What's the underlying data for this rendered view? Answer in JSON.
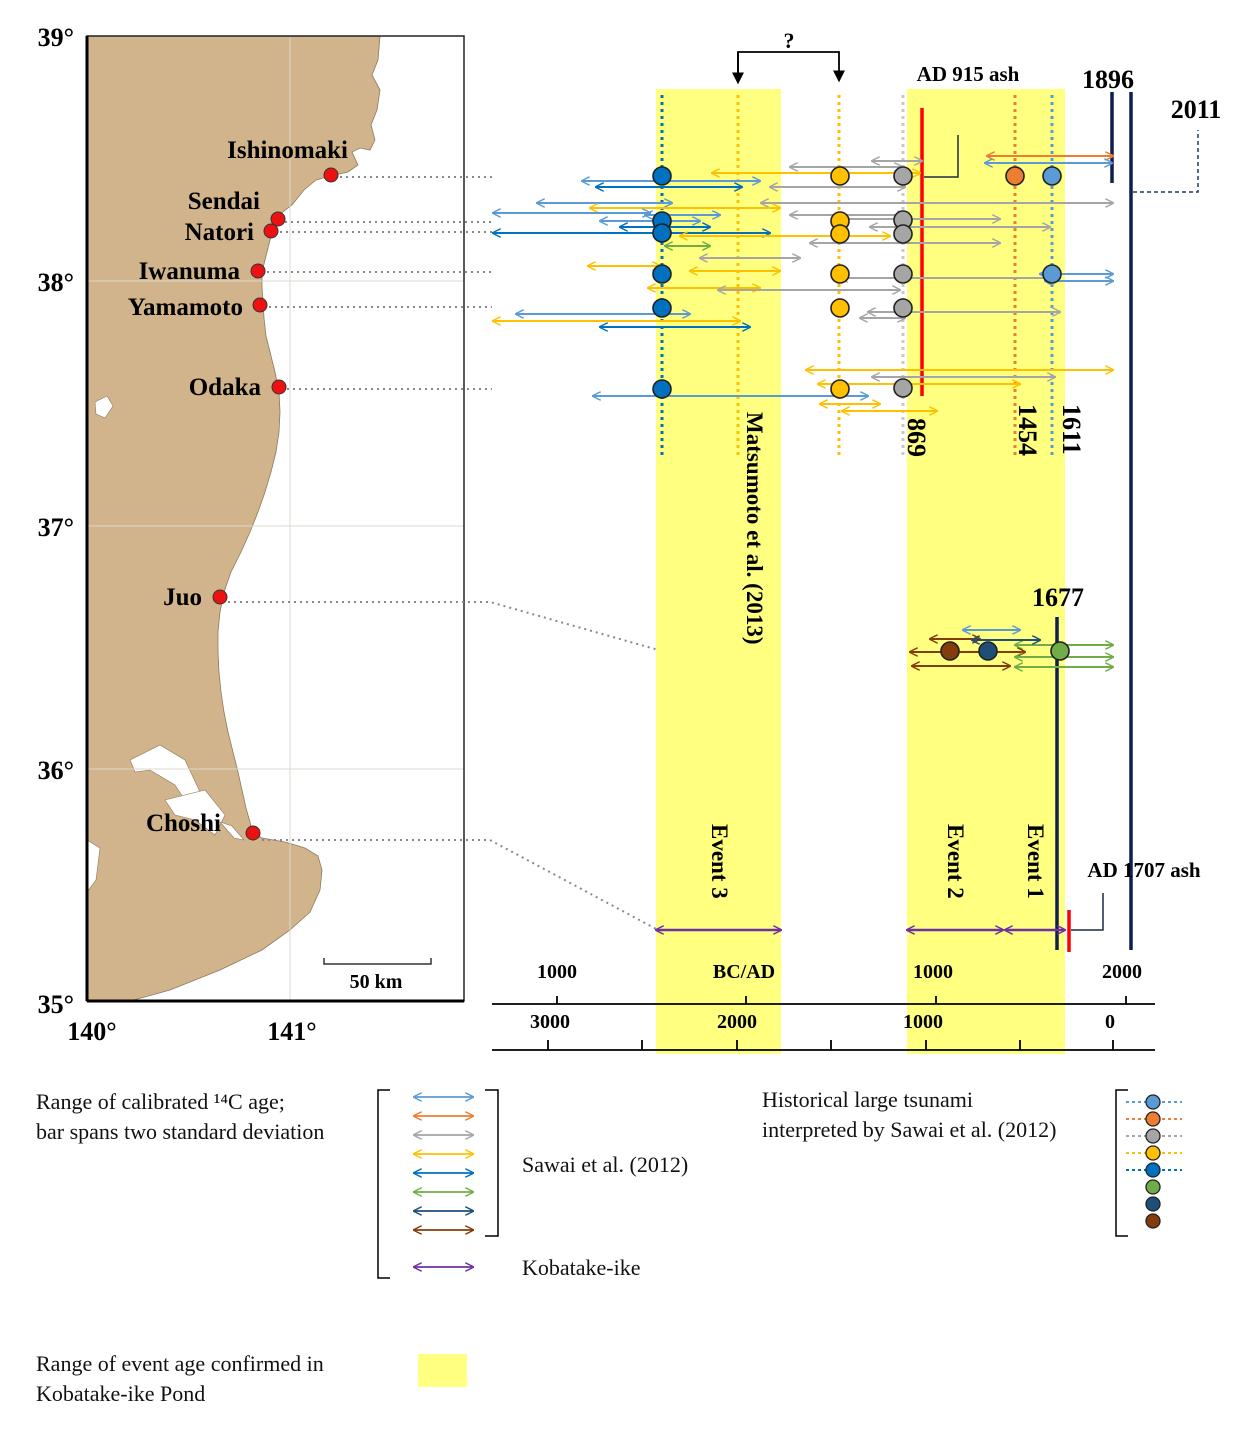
{
  "map": {
    "lat_labels": [
      "39°",
      "38°",
      "37°",
      "36°",
      "35°"
    ],
    "lon_labels": [
      "140°",
      "141°"
    ],
    "scale_label": "50 km",
    "sites": [
      {
        "name": "Ishinomaki"
      },
      {
        "name": "Sendai"
      },
      {
        "name": "Natori"
      },
      {
        "name": "Iwanuma"
      },
      {
        "name": "Yamamoto"
      },
      {
        "name": "Odaka"
      },
      {
        "name": "Juo"
      },
      {
        "name": "Choshi"
      }
    ],
    "colors": {
      "land": "#d2b48c",
      "site": "#ee1111"
    }
  },
  "timeline": {
    "axis_top_ticks": [
      "1000",
      "BC/AD",
      "1000",
      "2000"
    ],
    "axis_bottom_ticks": [
      "3000",
      "2000",
      "1000",
      "0"
    ],
    "question_mark": "?",
    "year_labels": {
      "y1896": "1896",
      "y2011": "2011",
      "y1677": "1677",
      "y869": "869",
      "y1454": "1454",
      "y1611": "1611"
    },
    "ash_labels": {
      "ad915": "AD 915 ash",
      "ad1707": "AD 1707 ash"
    },
    "matsumoto": "Matsumoto et al. (2013)",
    "events": [
      "Event 3",
      "Event 2",
      "Event 1"
    ],
    "colors": {
      "event_band": "#ffff80",
      "light_blue": "#5b9bd5",
      "orange": "#ed7d31",
      "gray": "#a5a5a5",
      "yellow": "#ffc000",
      "blue": "#0070c0",
      "green": "#70ad47",
      "navy": "#1f4e79",
      "brown": "#843c0c",
      "purple": "#7030a0",
      "ash_red": "#ff0000",
      "eq_line": "#0d1f4f"
    }
  },
  "legend": {
    "range_label_1": "Range of calibrated ¹⁴C age;",
    "range_label_2": "bar spans two standard deviation",
    "sawai": "Sawai et al. (2012)",
    "kobatake": "Kobatake-ike",
    "historical_1": "Historical large tsunami",
    "historical_2": "interpreted by Sawai et al. (2012)",
    "event_range_1": "Range of event age confirmed in",
    "event_range_2": "Kobatake-ike Pond"
  }
}
